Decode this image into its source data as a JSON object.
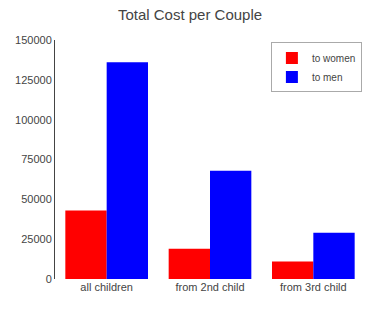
{
  "chart_data": {
    "type": "bar",
    "title": "Total Cost per Couple",
    "categories": [
      "all children",
      "from 2nd child",
      "from 3rd child"
    ],
    "series": [
      {
        "name": "to women",
        "color": "#ff0000",
        "values": [
          43000,
          19000,
          11000
        ]
      },
      {
        "name": "to men",
        "color": "#0000ff",
        "values": [
          136000,
          68000,
          29000
        ]
      }
    ],
    "ylim": [
      0,
      150000
    ],
    "yticks": [
      0,
      25000,
      50000,
      75000,
      100000,
      125000,
      150000
    ],
    "grid": false,
    "legend": "upper right"
  }
}
